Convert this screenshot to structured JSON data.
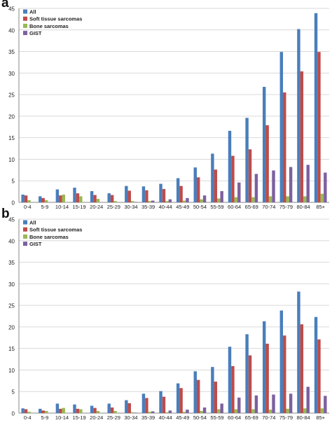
{
  "panels": [
    {
      "label": "a",
      "chart_data": {
        "type": "bar",
        "title": "",
        "xlabel": "",
        "ylabel": "",
        "ylim": [
          0,
          45
        ],
        "yticks": [
          0,
          5,
          10,
          15,
          20,
          25,
          30,
          35,
          40,
          45
        ],
        "grid": true,
        "legend_position": "top-left",
        "categories": [
          "0-4",
          "5-9",
          "10-14",
          "15-19",
          "20-24",
          "25-29",
          "30-34",
          "35-39",
          "40-44",
          "45-49",
          "50-54",
          "55-59",
          "60-64",
          "65-69",
          "70-74",
          "75-79",
          "80-84",
          "85+"
        ],
        "series": [
          {
            "name": "All",
            "color": "#4a7ebb",
            "values": [
              1.8,
              1.4,
              3.0,
              3.4,
              2.6,
              2.1,
              3.8,
              3.7,
              4.3,
              5.6,
              8.1,
              11.3,
              16.6,
              19.6,
              26.8,
              34.9,
              40.2,
              43.9
            ]
          },
          {
            "name": "Soft tissue sarcomas",
            "color": "#be4b48",
            "values": [
              1.6,
              1.0,
              1.6,
              2.1,
              1.7,
              1.7,
              2.7,
              2.8,
              3.1,
              3.8,
              5.8,
              7.6,
              10.8,
              12.3,
              17.9,
              25.5,
              30.4,
              34.9
            ]
          },
          {
            "name": "Bone sarcomas",
            "color": "#98b954",
            "values": [
              0.5,
              0.5,
              1.8,
              1.4,
              0.8,
              0.3,
              0.3,
              0.3,
              0.3,
              0.4,
              0.7,
              0.9,
              1.2,
              1.2,
              1.4,
              1.4,
              1.4,
              2.0
            ]
          },
          {
            "name": "GIST",
            "color": "#7d60a0",
            "values": [
              0.0,
              0.0,
              0.0,
              0.0,
              0.0,
              0.0,
              0.1,
              0.4,
              0.7,
              1.0,
              1.6,
              2.6,
              4.6,
              6.6,
              7.4,
              8.2,
              8.7,
              6.9
            ]
          }
        ]
      }
    },
    {
      "label": "b",
      "chart_data": {
        "type": "bar",
        "title": "",
        "xlabel": "",
        "ylabel": "",
        "ylim": [
          0,
          45
        ],
        "yticks": [
          0,
          5,
          10,
          15,
          20,
          25,
          30,
          35,
          40,
          45
        ],
        "grid": true,
        "legend_position": "top-left",
        "categories": [
          "0-4",
          "5-9",
          "10-14",
          "15-19",
          "20-24",
          "25-29",
          "30-34",
          "35-39",
          "40-44",
          "45-49",
          "50-54",
          "55-59",
          "60-64",
          "65-69",
          "70-74",
          "75-79",
          "80-84",
          "85+"
        ],
        "series": [
          {
            "name": "All",
            "color": "#4a7ebb",
            "values": [
              1.1,
              1.0,
              2.2,
              2.0,
              1.7,
              2.2,
              3.0,
              4.5,
              5.1,
              6.9,
              9.7,
              10.7,
              15.4,
              18.3,
              21.3,
              23.8,
              28.2,
              22.3
            ]
          },
          {
            "name": "Soft tissue sarcomas",
            "color": "#be4b48",
            "values": [
              0.9,
              0.6,
              1.0,
              1.0,
              1.2,
              1.3,
              2.3,
              3.5,
              3.8,
              5.8,
              7.7,
              7.3,
              10.9,
              13.4,
              16.1,
              18.0,
              20.6,
              17.1
            ]
          },
          {
            "name": "Bone sarcomas",
            "color": "#98b954",
            "values": [
              0.3,
              0.5,
              1.2,
              0.9,
              0.5,
              0.5,
              0.2,
              0.3,
              0.2,
              0.3,
              0.5,
              0.9,
              0.9,
              0.9,
              0.8,
              1.0,
              1.1,
              1.1
            ]
          },
          {
            "name": "GIST",
            "color": "#7d60a0",
            "values": [
              0.0,
              0.0,
              0.0,
              0.0,
              0.0,
              0.0,
              0.1,
              0.4,
              0.6,
              0.8,
              1.3,
              2.2,
              3.6,
              4.1,
              4.3,
              4.5,
              6.1,
              4.0
            ]
          }
        ]
      }
    }
  ]
}
